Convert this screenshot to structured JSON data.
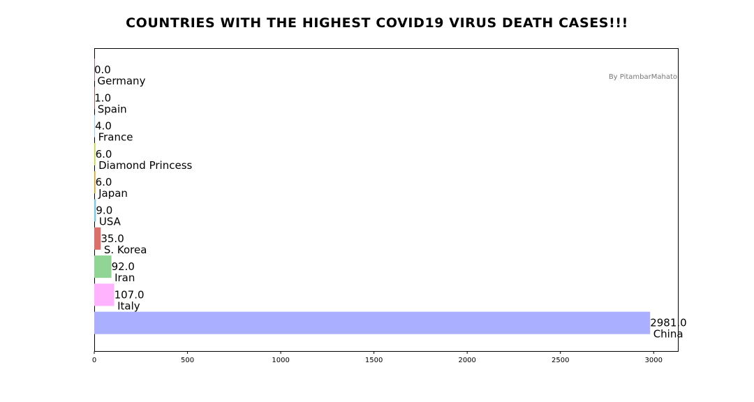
{
  "chart_data": {
    "type": "bar",
    "orientation": "horizontal",
    "title": "COUNTRIES WITH THE HIGHEST COVID19 VIRUS DEATH CASES!!!",
    "credit": "By PitambarMahato",
    "xlim": [
      0,
      3130
    ],
    "xticks": [
      0,
      500,
      1000,
      1500,
      2000,
      2500,
      3000
    ],
    "grid": false,
    "bars": [
      {
        "category": "Germany",
        "value": 0.0,
        "value_label": "0.0",
        "color": "#ffb3e6"
      },
      {
        "category": "Spain",
        "value": 1.0,
        "value_label": "1.0",
        "color": "#ff9999"
      },
      {
        "category": "France",
        "value": 4.0,
        "value_label": "4.0",
        "color": "#99ccff"
      },
      {
        "category": "Diamond Princess",
        "value": 6.0,
        "value_label": "6.0",
        "color": "#c2d83a"
      },
      {
        "category": "Japan",
        "value": 6.0,
        "value_label": "6.0",
        "color": "#d4a017"
      },
      {
        "category": "USA",
        "value": 9.0,
        "value_label": "9.0",
        "color": "#7ec8e3"
      },
      {
        "category": "S. Korea",
        "value": 35.0,
        "value_label": "35.0",
        "color": "#d9706b"
      },
      {
        "category": "Iran",
        "value": 92.0,
        "value_label": "92.0",
        "color": "#90d595"
      },
      {
        "category": "Italy",
        "value": 107.0,
        "value_label": "107.0",
        "color": "#ffb3ff"
      },
      {
        "category": "China",
        "value": 2981.0,
        "value_label": "2981.0",
        "color": "#aaafff"
      }
    ]
  }
}
